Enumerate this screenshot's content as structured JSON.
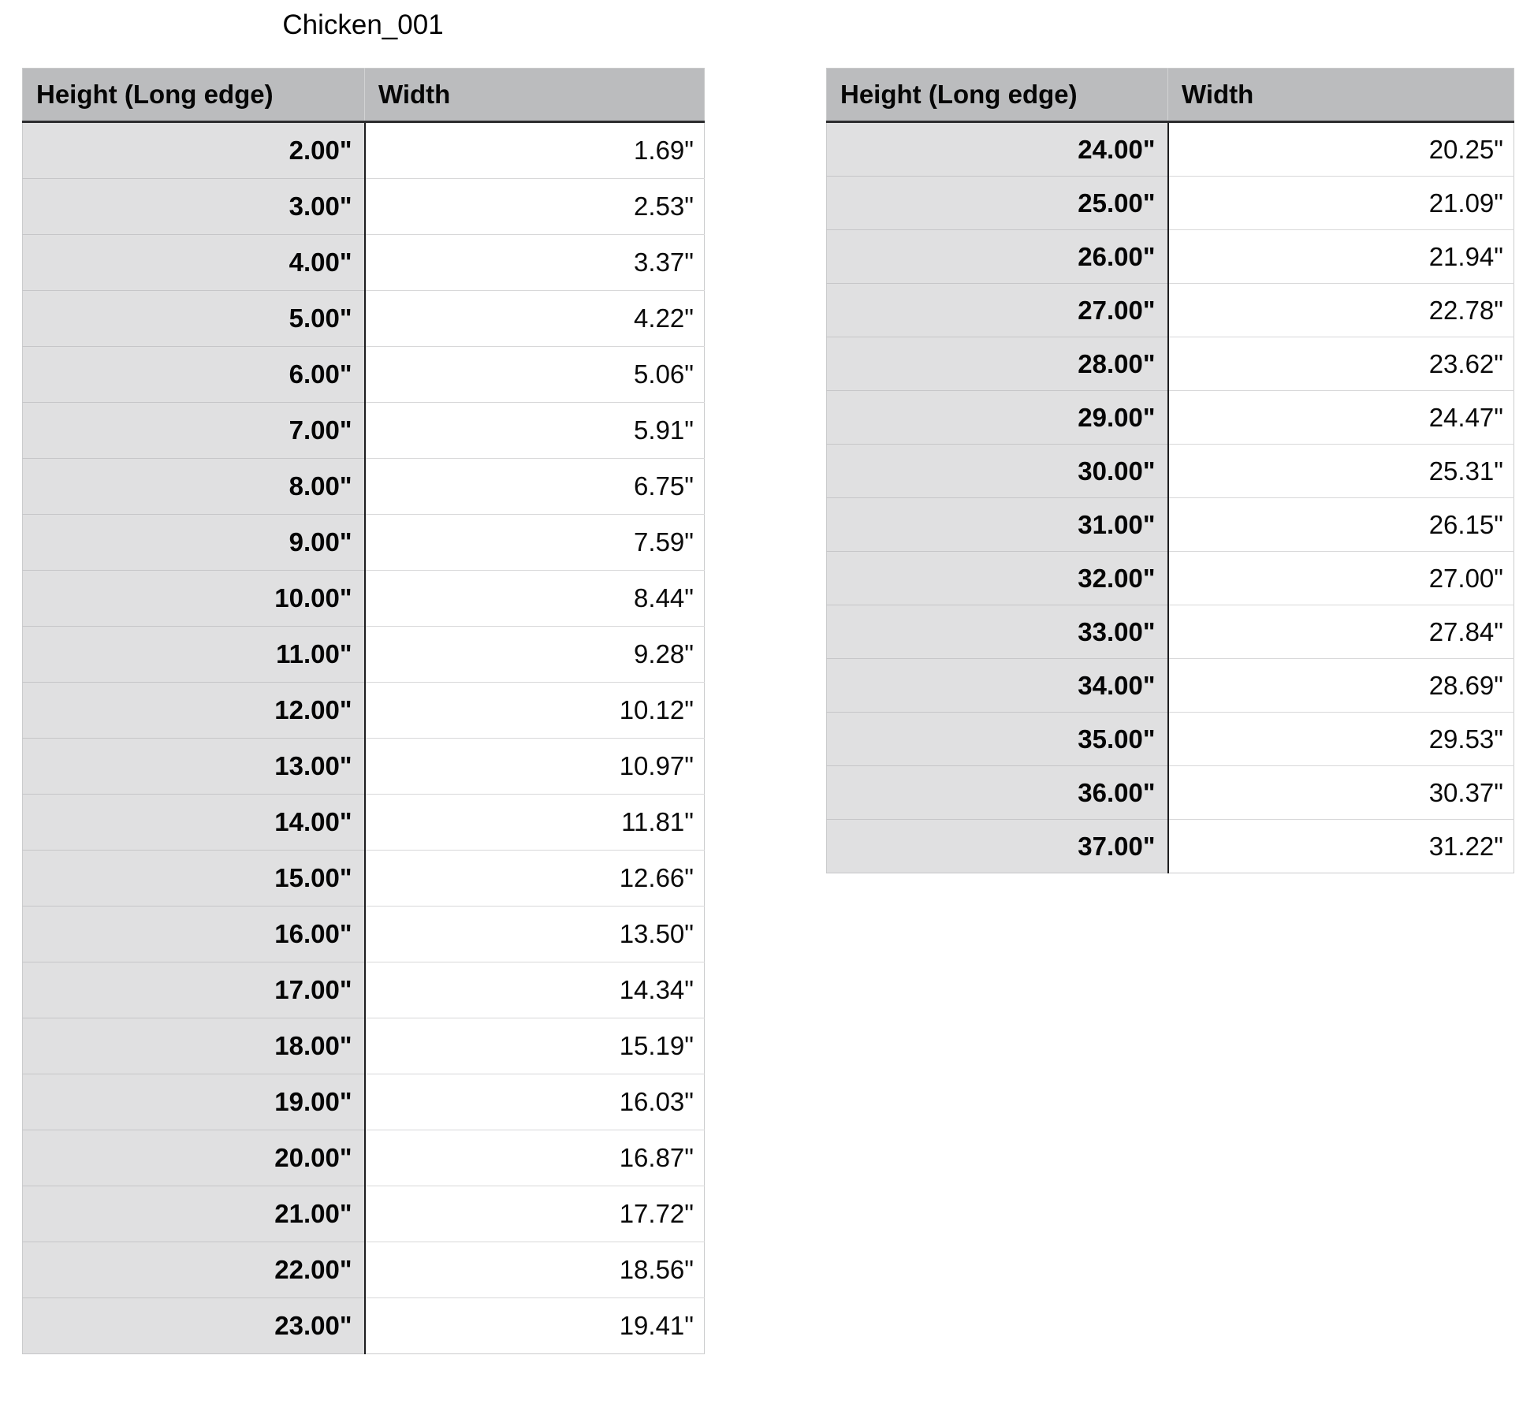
{
  "title": "Chicken_001",
  "colors": {
    "header_bg": "#bbbcbe",
    "height_column_bg": "#e0e0e1",
    "width_column_bg": "#ffffff",
    "header_underline": "#2c2c2e",
    "column_divider": "#1d1d1f",
    "row_line": "#cbcccd",
    "text": "#000000"
  },
  "tables": [
    {
      "columns": [
        "Height (Long edge)",
        "Width"
      ],
      "rows": [
        {
          "height": "2.00\"",
          "width": "1.69\""
        },
        {
          "height": "3.00\"",
          "width": "2.53\""
        },
        {
          "height": "4.00\"",
          "width": "3.37\""
        },
        {
          "height": "5.00\"",
          "width": "4.22\""
        },
        {
          "height": "6.00\"",
          "width": "5.06\""
        },
        {
          "height": "7.00\"",
          "width": "5.91\""
        },
        {
          "height": "8.00\"",
          "width": "6.75\""
        },
        {
          "height": "9.00\"",
          "width": "7.59\""
        },
        {
          "height": "10.00\"",
          "width": "8.44\""
        },
        {
          "height": "11.00\"",
          "width": "9.28\""
        },
        {
          "height": "12.00\"",
          "width": "10.12\""
        },
        {
          "height": "13.00\"",
          "width": "10.97\""
        },
        {
          "height": "14.00\"",
          "width": "11.81\""
        },
        {
          "height": "15.00\"",
          "width": "12.66\""
        },
        {
          "height": "16.00\"",
          "width": "13.50\""
        },
        {
          "height": "17.00\"",
          "width": "14.34\""
        },
        {
          "height": "18.00\"",
          "width": "15.19\""
        },
        {
          "height": "19.00\"",
          "width": "16.03\""
        },
        {
          "height": "20.00\"",
          "width": "16.87\""
        },
        {
          "height": "21.00\"",
          "width": "17.72\""
        },
        {
          "height": "22.00\"",
          "width": "18.56\""
        },
        {
          "height": "23.00\"",
          "width": "19.41\""
        }
      ]
    },
    {
      "columns": [
        "Height (Long edge)",
        "Width"
      ],
      "rows": [
        {
          "height": "24.00\"",
          "width": "20.25\""
        },
        {
          "height": "25.00\"",
          "width": "21.09\""
        },
        {
          "height": "26.00\"",
          "width": "21.94\""
        },
        {
          "height": "27.00\"",
          "width": "22.78\""
        },
        {
          "height": "28.00\"",
          "width": "23.62\""
        },
        {
          "height": "29.00\"",
          "width": "24.47\""
        },
        {
          "height": "30.00\"",
          "width": "25.31\""
        },
        {
          "height": "31.00\"",
          "width": "26.15\""
        },
        {
          "height": "32.00\"",
          "width": "27.00\""
        },
        {
          "height": "33.00\"",
          "width": "27.84\""
        },
        {
          "height": "34.00\"",
          "width": "28.69\""
        },
        {
          "height": "35.00\"",
          "width": "29.53\""
        },
        {
          "height": "36.00\"",
          "width": "30.37\""
        },
        {
          "height": "37.00\"",
          "width": "31.22\""
        }
      ]
    }
  ]
}
